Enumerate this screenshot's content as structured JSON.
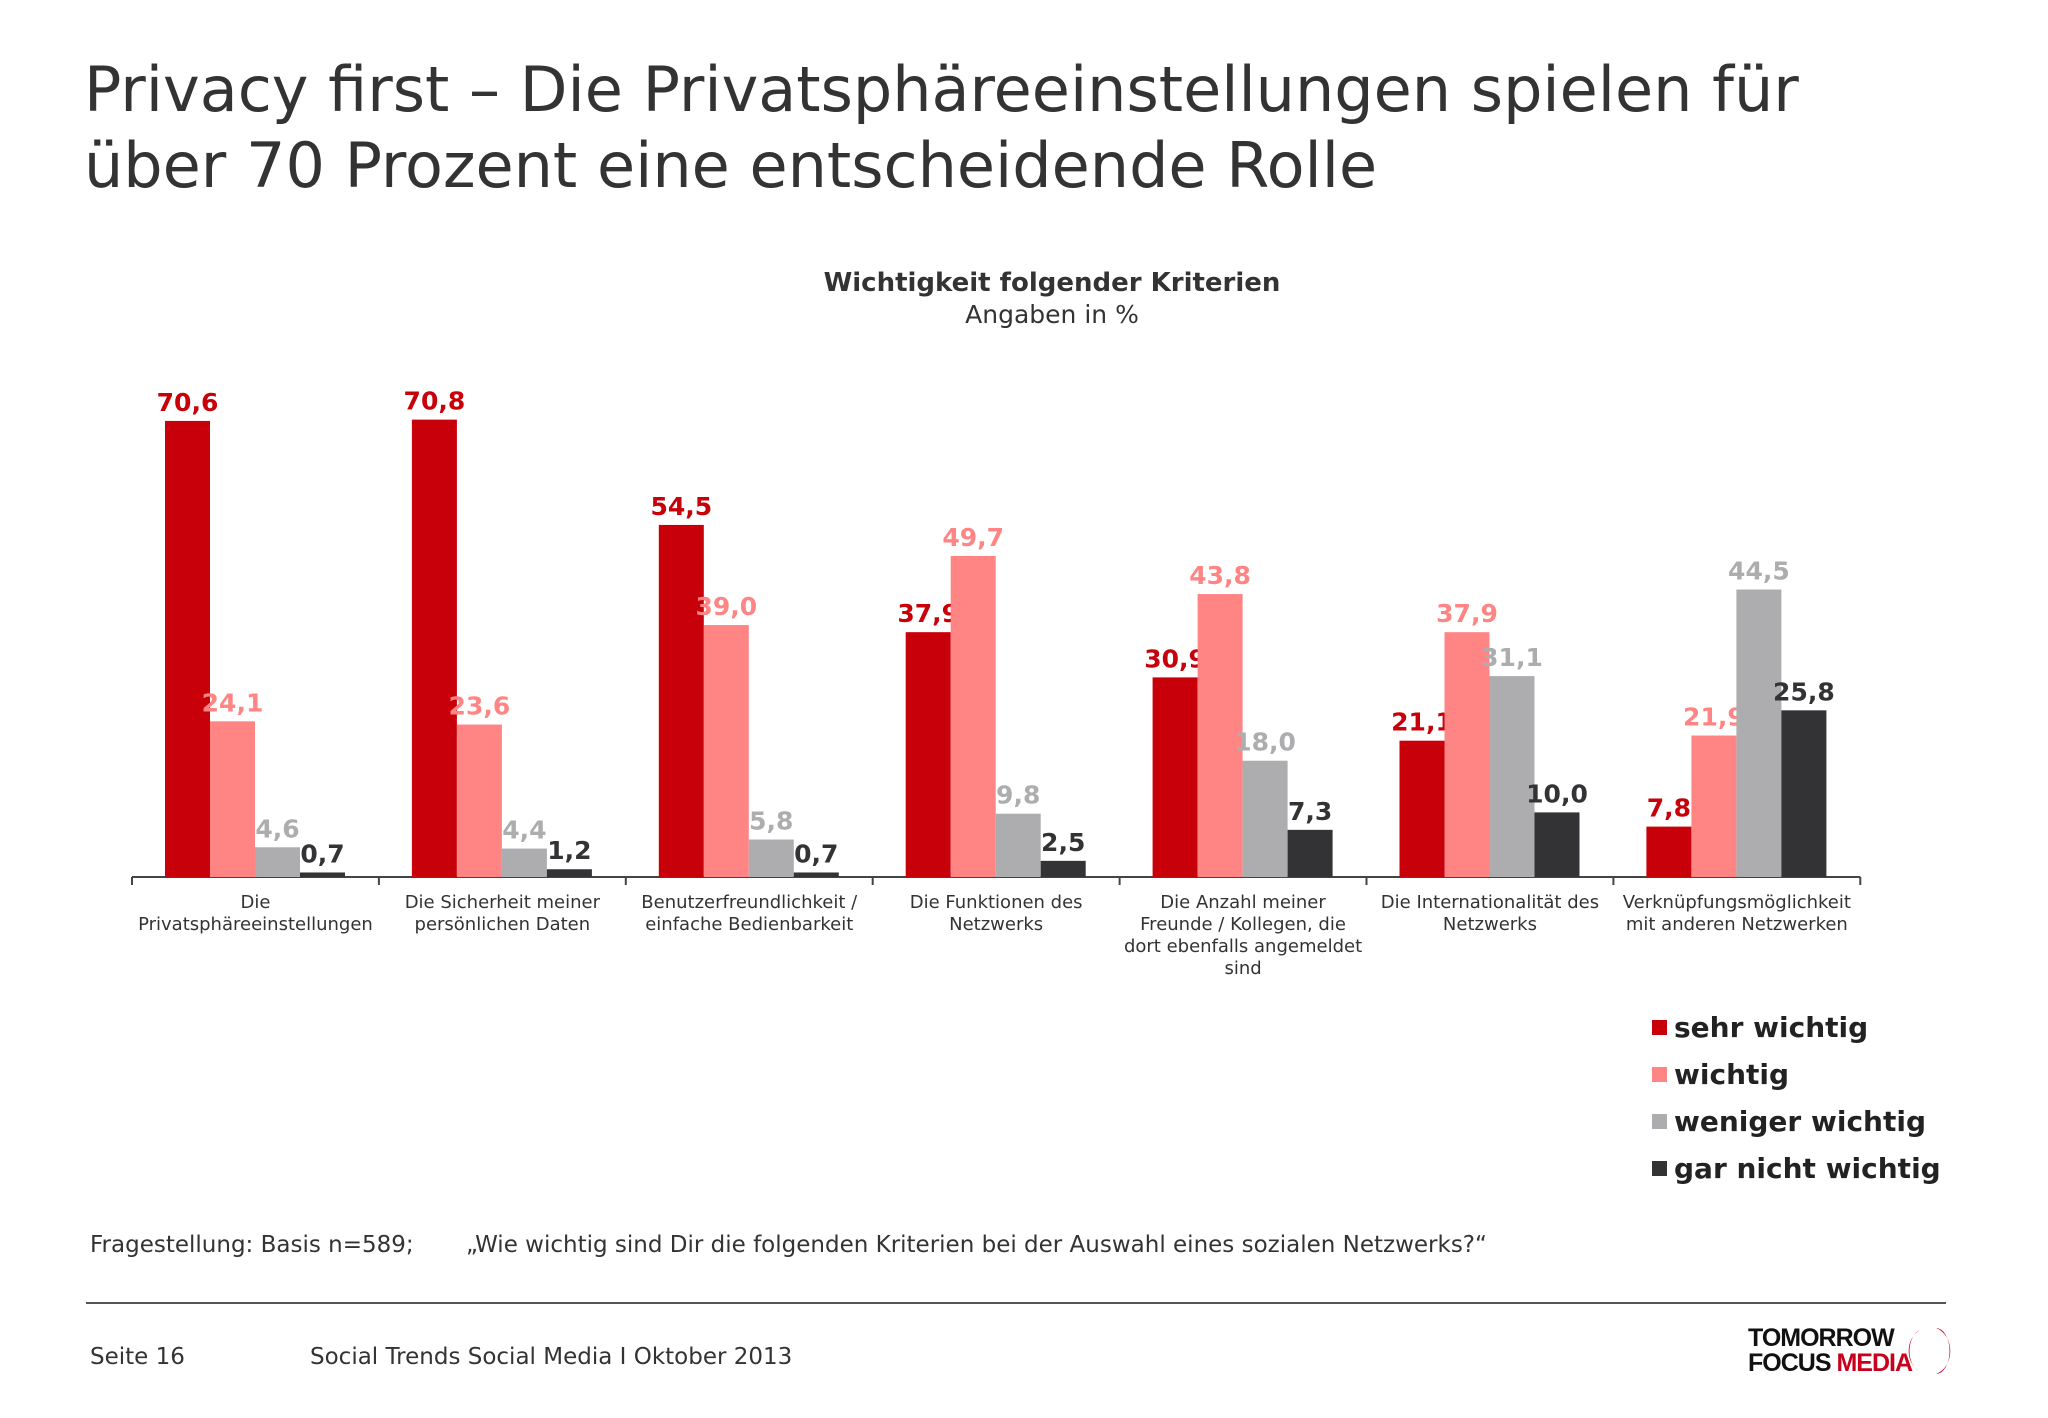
{
  "title_lines": [
    "Privacy first – Die Privatsphäreeinstellungen spielen für",
    "über 70 Prozent eine entscheidende Rolle"
  ],
  "chart_data": {
    "type": "bar",
    "title": "Wichtigkeit folgender Kriterien",
    "subtitle": "Angaben in %",
    "categories": [
      [
        "Die",
        "Privatsphäreeinstellungen"
      ],
      [
        "Die Sicherheit meiner",
        "persönlichen Daten"
      ],
      [
        "Benutzerfreundlichkeit /",
        "einfache Bedienbarkeit"
      ],
      [
        "Die Funktionen des",
        "Netzwerks"
      ],
      [
        "Die Anzahl meiner",
        "Freunde / Kollegen, die",
        "dort ebenfalls angemeldet",
        "sind"
      ],
      [
        "Die Internationalität des",
        "Netzwerks"
      ],
      [
        "Verknüpfungsmöglichkeit",
        "mit anderen Netzwerken"
      ]
    ],
    "series": [
      {
        "name": "sehr wichtig",
        "color": "#c8000a",
        "values": [
          70.6,
          70.8,
          54.5,
          37.9,
          30.9,
          21.1,
          7.8
        ],
        "labels": [
          "70,6",
          "70,8",
          "54,5",
          "37,9",
          "30,9",
          "21,1",
          "7,8"
        ]
      },
      {
        "name": "wichtig",
        "color": "#ff8585",
        "values": [
          24.1,
          23.6,
          39.0,
          49.7,
          43.8,
          37.9,
          21.9
        ],
        "labels": [
          "24,1",
          "23,6",
          "39,0",
          "49,7",
          "43,8",
          "37,9",
          "21,9"
        ]
      },
      {
        "name": "weniger wichtig",
        "color": "#adadaf",
        "values": [
          4.6,
          4.4,
          5.8,
          9.8,
          18.0,
          31.1,
          44.5
        ],
        "labels": [
          "4,6",
          "4,4",
          "5,8",
          "9,8",
          "18,0",
          "31,1",
          "44,5"
        ]
      },
      {
        "name": "gar nicht wichtig",
        "color": "#333336",
        "values": [
          0.7,
          1.2,
          0.7,
          2.5,
          7.3,
          10.0,
          25.8
        ],
        "labels": [
          "0,7",
          "1,2",
          "0,7",
          "2,5",
          "7,3",
          "10,0",
          "25,8"
        ]
      }
    ],
    "ylim": [
      0,
      75
    ],
    "grid": false,
    "legend": "bottom-right"
  },
  "question": {
    "label": "Fragestellung: Basis n=589;",
    "text": "„Wie wichtig sind Dir die folgenden Kriterien bei der Auswahl eines sozialen Netzwerks?“"
  },
  "footer": {
    "page": "Seite 16",
    "source": "Social Trends Social Media I Oktober 2013"
  },
  "logo": {
    "line1": "TOMORROW",
    "line2a": "FOCUS",
    "line2b": "MEDIA"
  }
}
